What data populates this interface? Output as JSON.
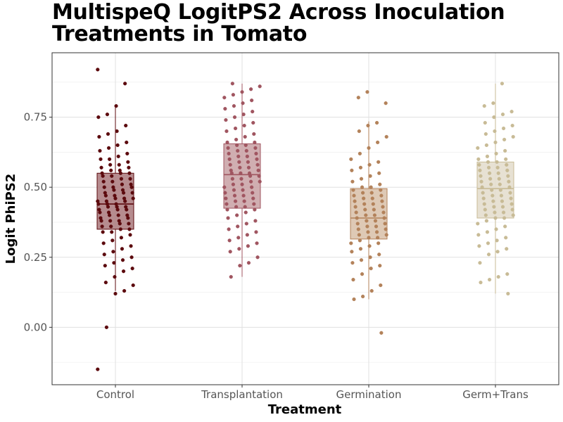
{
  "chart_data": {
    "type": "box+jitter",
    "title": "MultispeQ LogitPS2 Across Inoculation Treatments in Tomato",
    "xlabel": "Treatment",
    "ylabel": "Logit PhiPS2",
    "ylim": [
      -0.205,
      0.98
    ],
    "yticks": [
      0.0,
      0.25,
      0.5,
      0.75
    ],
    "ytick_labels": [
      "0.00",
      "0.25",
      "0.50",
      "0.75"
    ],
    "grid": true,
    "categories": [
      "Control",
      "Transplantation",
      "Germination",
      "Germ+Trans"
    ],
    "colors": [
      "#5c0a0e",
      "#a05560",
      "#b3825a",
      "#c8bb96"
    ],
    "box_fill_colors": [
      "#a9787b",
      "#c8a0a3",
      "#d8c0a8",
      "#e3dccb"
    ],
    "boxes": [
      {
        "category": "Control",
        "q1": 0.35,
        "median": 0.44,
        "q3": 0.55,
        "whisker_low": 0.13,
        "whisker_high": 0.79
      },
      {
        "category": "Transplantation",
        "q1": 0.425,
        "median": 0.545,
        "q3": 0.655,
        "whisker_low": 0.18,
        "whisker_high": 0.87
      },
      {
        "category": "Germination",
        "q1": 0.315,
        "median": 0.39,
        "q3": 0.495,
        "whisker_low": 0.1,
        "whisker_high": 0.735
      },
      {
        "category": "Germ+Trans",
        "q1": 0.39,
        "median": 0.495,
        "q3": 0.59,
        "whisker_low": 0.12,
        "whisker_high": 0.87
      }
    ],
    "points": [
      {
        "category": "Control",
        "values": [
          0.92,
          0.87,
          0.79,
          0.76,
          0.75,
          0.72,
          0.7,
          0.69,
          0.68,
          0.66,
          0.65,
          0.64,
          0.63,
          0.62,
          0.61,
          0.6,
          0.6,
          0.59,
          0.58,
          0.58,
          0.57,
          0.57,
          0.56,
          0.56,
          0.55,
          0.55,
          0.55,
          0.54,
          0.54,
          0.53,
          0.53,
          0.52,
          0.52,
          0.51,
          0.51,
          0.5,
          0.5,
          0.5,
          0.49,
          0.49,
          0.48,
          0.48,
          0.48,
          0.47,
          0.47,
          0.46,
          0.46,
          0.46,
          0.45,
          0.45,
          0.45,
          0.44,
          0.44,
          0.44,
          0.43,
          0.43,
          0.43,
          0.42,
          0.42,
          0.42,
          0.41,
          0.41,
          0.4,
          0.4,
          0.4,
          0.39,
          0.39,
          0.38,
          0.38,
          0.38,
          0.37,
          0.37,
          0.36,
          0.36,
          0.35,
          0.35,
          0.34,
          0.34,
          0.33,
          0.32,
          0.31,
          0.3,
          0.29,
          0.28,
          0.27,
          0.26,
          0.25,
          0.24,
          0.23,
          0.22,
          0.21,
          0.2,
          0.18,
          0.16,
          0.15,
          0.13,
          0.12,
          0.0,
          -0.15
        ]
      },
      {
        "category": "Transplantation",
        "values": [
          0.87,
          0.86,
          0.85,
          0.84,
          0.83,
          0.82,
          0.81,
          0.8,
          0.79,
          0.78,
          0.77,
          0.76,
          0.75,
          0.74,
          0.73,
          0.72,
          0.71,
          0.7,
          0.69,
          0.68,
          0.67,
          0.66,
          0.66,
          0.65,
          0.65,
          0.64,
          0.64,
          0.63,
          0.63,
          0.62,
          0.62,
          0.61,
          0.61,
          0.6,
          0.6,
          0.59,
          0.59,
          0.58,
          0.58,
          0.57,
          0.57,
          0.56,
          0.56,
          0.55,
          0.55,
          0.55,
          0.54,
          0.54,
          0.53,
          0.53,
          0.52,
          0.52,
          0.51,
          0.51,
          0.5,
          0.5,
          0.49,
          0.49,
          0.48,
          0.48,
          0.47,
          0.47,
          0.46,
          0.46,
          0.45,
          0.45,
          0.44,
          0.44,
          0.43,
          0.43,
          0.42,
          0.42,
          0.41,
          0.4,
          0.39,
          0.38,
          0.37,
          0.36,
          0.35,
          0.34,
          0.33,
          0.32,
          0.31,
          0.3,
          0.29,
          0.28,
          0.27,
          0.25,
          0.23,
          0.22,
          0.18
        ]
      },
      {
        "category": "Germination",
        "values": [
          0.84,
          0.82,
          0.8,
          0.73,
          0.72,
          0.7,
          0.68,
          0.66,
          0.64,
          0.62,
          0.6,
          0.59,
          0.58,
          0.57,
          0.56,
          0.55,
          0.54,
          0.53,
          0.52,
          0.51,
          0.5,
          0.5,
          0.49,
          0.49,
          0.48,
          0.48,
          0.47,
          0.47,
          0.46,
          0.46,
          0.45,
          0.45,
          0.44,
          0.44,
          0.43,
          0.43,
          0.42,
          0.42,
          0.41,
          0.41,
          0.4,
          0.4,
          0.39,
          0.39,
          0.38,
          0.38,
          0.37,
          0.37,
          0.36,
          0.36,
          0.35,
          0.35,
          0.34,
          0.34,
          0.33,
          0.33,
          0.32,
          0.32,
          0.31,
          0.3,
          0.3,
          0.29,
          0.28,
          0.27,
          0.26,
          0.25,
          0.24,
          0.23,
          0.22,
          0.21,
          0.19,
          0.17,
          0.15,
          0.13,
          0.11,
          0.1,
          -0.02
        ]
      },
      {
        "category": "Germ+Trans",
        "values": [
          0.87,
          0.8,
          0.79,
          0.77,
          0.76,
          0.75,
          0.73,
          0.72,
          0.71,
          0.7,
          0.69,
          0.68,
          0.67,
          0.66,
          0.65,
          0.64,
          0.63,
          0.62,
          0.61,
          0.6,
          0.6,
          0.59,
          0.59,
          0.58,
          0.58,
          0.57,
          0.57,
          0.56,
          0.56,
          0.55,
          0.55,
          0.54,
          0.54,
          0.53,
          0.53,
          0.52,
          0.52,
          0.51,
          0.51,
          0.5,
          0.5,
          0.49,
          0.49,
          0.48,
          0.48,
          0.47,
          0.47,
          0.46,
          0.46,
          0.45,
          0.45,
          0.44,
          0.44,
          0.43,
          0.43,
          0.42,
          0.42,
          0.41,
          0.41,
          0.4,
          0.4,
          0.39,
          0.39,
          0.38,
          0.37,
          0.36,
          0.35,
          0.34,
          0.33,
          0.32,
          0.31,
          0.3,
          0.29,
          0.28,
          0.27,
          0.26,
          0.23,
          0.19,
          0.18,
          0.17,
          0.16,
          0.12
        ]
      }
    ]
  }
}
